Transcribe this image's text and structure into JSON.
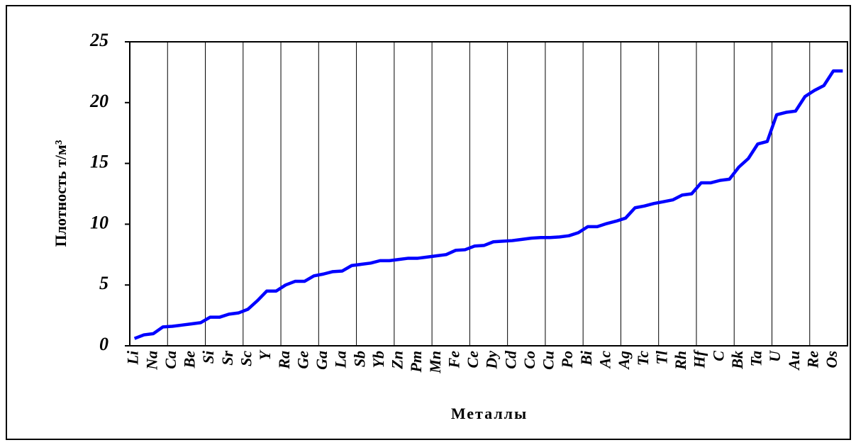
{
  "chart_data": {
    "type": "line",
    "x_label": "Металлы",
    "y_label": "Плотность  т/м³",
    "categories": [
      "Li",
      null,
      "Na",
      null,
      "Ca",
      null,
      "Be",
      null,
      "Si",
      null,
      "Sr",
      null,
      "Sc",
      null,
      "Y",
      null,
      "Ra",
      null,
      "Ge",
      null,
      "Ga",
      null,
      "La",
      null,
      "Sb",
      null,
      "Yb",
      null,
      "Zn",
      null,
      "Pm",
      null,
      "Mn",
      null,
      "Fe",
      null,
      "Ce",
      null,
      "Dy",
      null,
      "Cd",
      null,
      "Co",
      null,
      "Cu",
      null,
      "Po",
      null,
      "Bi",
      null,
      "Ac",
      null,
      "Ag",
      null,
      "Tc",
      null,
      "Tl",
      null,
      "Rh",
      null,
      "Hf",
      null,
      "C",
      null,
      "Bk",
      null,
      "Ta",
      null,
      "U",
      null,
      "Au",
      null,
      "Re",
      null,
      "Os",
      null
    ],
    "series": [
      {
        "color": "#0000ff",
        "values": [
          0.6,
          0.9,
          1.0,
          1.55,
          1.6,
          1.7,
          1.8,
          1.9,
          2.35,
          2.35,
          2.6,
          2.7,
          3.0,
          3.7,
          4.5,
          4.5,
          5.0,
          5.3,
          5.3,
          5.75,
          5.9,
          6.1,
          6.15,
          6.6,
          6.7,
          6.8,
          7.0,
          7.0,
          7.1,
          7.2,
          7.2,
          7.3,
          7.4,
          7.5,
          7.85,
          7.9,
          8.2,
          8.25,
          8.55,
          8.6,
          8.65,
          8.75,
          8.85,
          8.9,
          8.9,
          8.95,
          9.05,
          9.3,
          9.8,
          9.8,
          10.05,
          10.25,
          10.5,
          11.35,
          11.5,
          11.7,
          11.85,
          12.0,
          12.4,
          12.5,
          13.4,
          13.4,
          13.6,
          13.7,
          14.7,
          15.4,
          16.6,
          16.8,
          19.0,
          19.2,
          19.3,
          20.5,
          21.0,
          21.4,
          22.6,
          22.6
        ]
      }
    ],
    "ylim": [
      0,
      25
    ],
    "yticks": [
      0,
      5,
      10,
      15,
      20,
      25
    ],
    "grid_every": 4
  }
}
